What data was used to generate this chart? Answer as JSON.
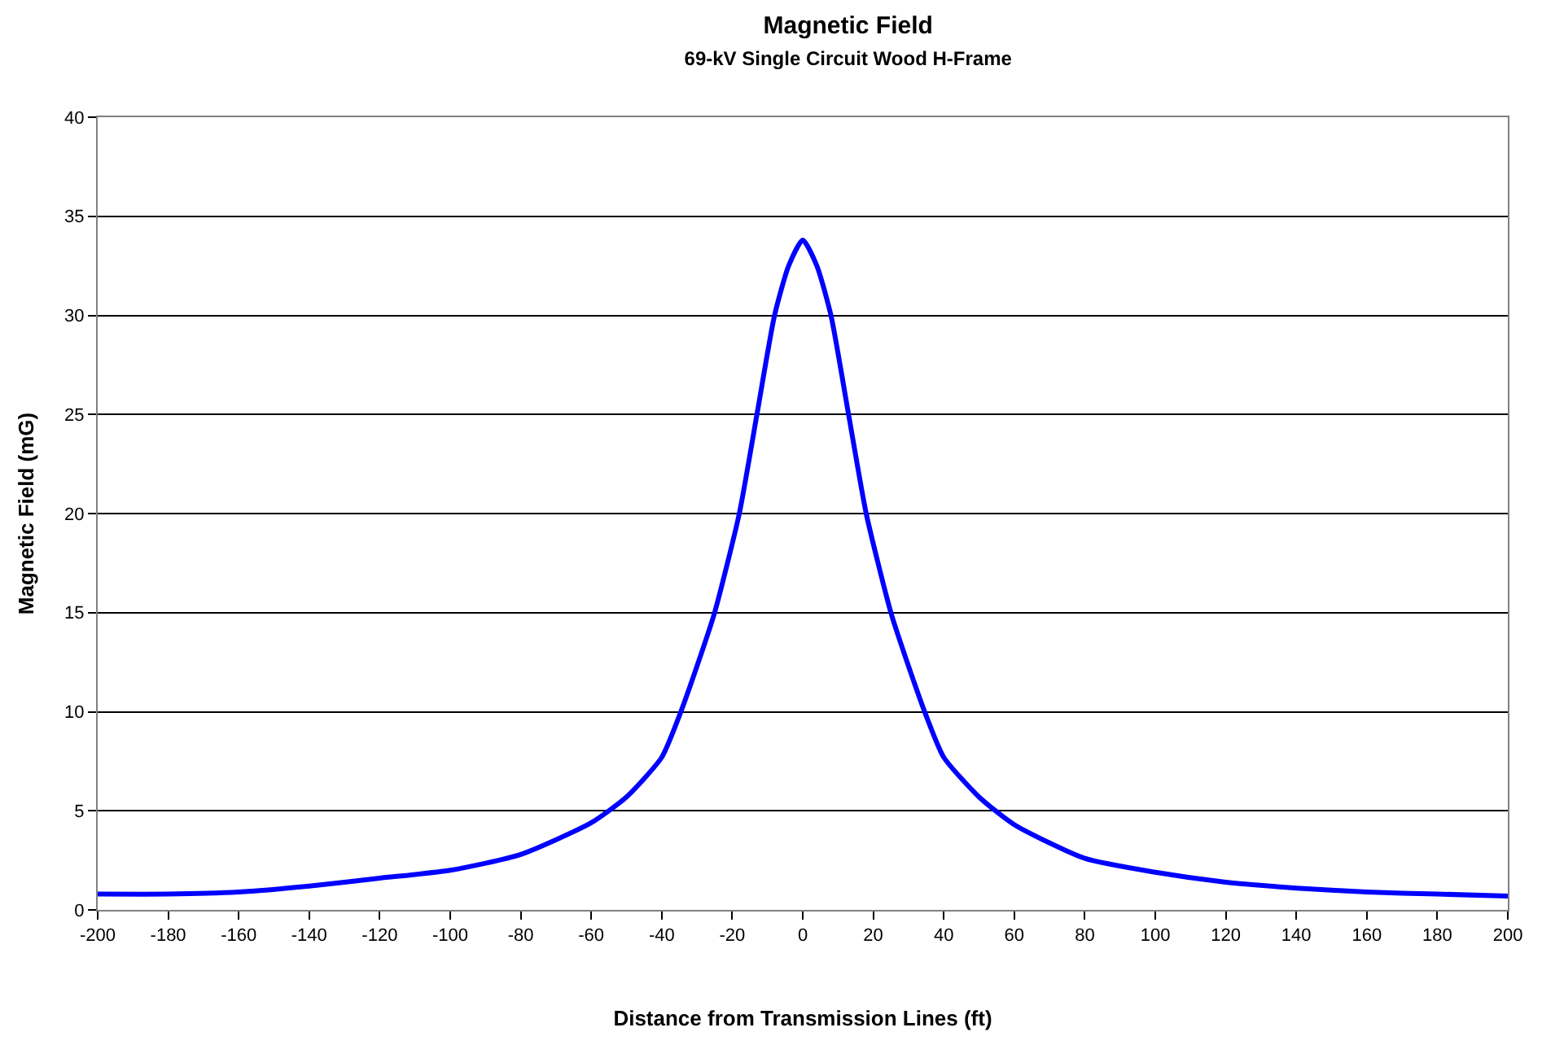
{
  "chart_data": {
    "type": "line",
    "title": "Magnetic Field",
    "subtitle": "69-kV Single Circuit Wood H-Frame",
    "xlabel": "Distance from Transmission Lines (ft)",
    "ylabel": "Magnetic Field (mG)",
    "x": [
      -200,
      -180,
      -160,
      -140,
      -120,
      -100,
      -80,
      -60,
      -50,
      -40,
      -35,
      -30,
      -25,
      -18,
      -13,
      -8,
      -4,
      0,
      4,
      8,
      13,
      18,
      25,
      30,
      35,
      40,
      50,
      60,
      80,
      100,
      120,
      140,
      160,
      180,
      200
    ],
    "series": [
      {
        "color": "#0000ff",
        "values": [
          0.8,
          0.8,
          0.9,
          1.2,
          1.6,
          2.0,
          2.8,
          4.4,
          5.7,
          7.7,
          9.8,
          12.3,
          15,
          20,
          25,
          30,
          32.5,
          33.8,
          32.5,
          30,
          25,
          20,
          15,
          12.3,
          9.8,
          7.7,
          5.7,
          4.3,
          2.6,
          1.9,
          1.4,
          1.1,
          0.9,
          0.8,
          0.7
        ]
      }
    ],
    "xlim": [
      -200,
      200
    ],
    "xticks": [
      -200,
      -180,
      -160,
      -140,
      -120,
      -100,
      -80,
      -60,
      -40,
      -20,
      0,
      20,
      40,
      60,
      80,
      100,
      120,
      140,
      160,
      180,
      200
    ],
    "ylim": [
      0,
      40
    ],
    "yticks": [
      0,
      5,
      10,
      15,
      20,
      25,
      30,
      35,
      40
    ],
    "grid": "y",
    "marker": "none",
    "line_style": "solid"
  }
}
